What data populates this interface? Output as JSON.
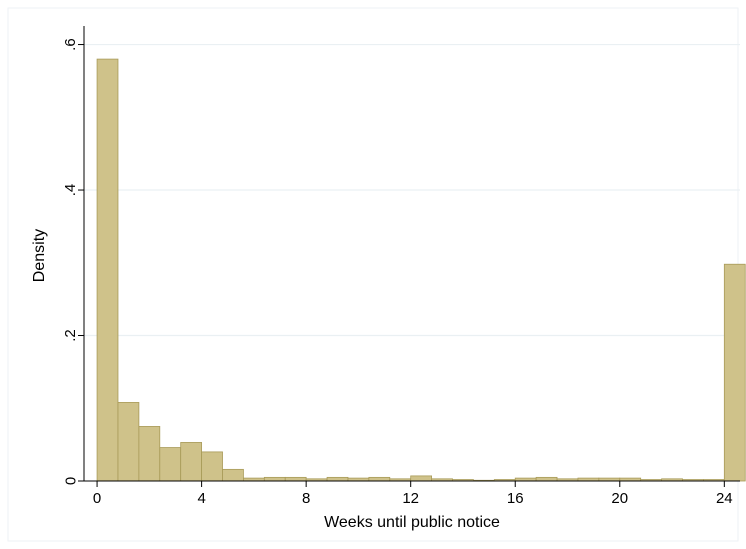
{
  "chart_data": {
    "type": "bar",
    "title": "",
    "xlabel": "Weeks until public notice",
    "ylabel": "Density",
    "xlim": [
      -0.5,
      24.6
    ],
    "ylim": [
      0,
      0.62
    ],
    "x_ticks": [
      0,
      4,
      8,
      12,
      16,
      20,
      24
    ],
    "x_tick_labels": [
      "0",
      "4",
      "8",
      "12",
      "16",
      "20",
      "24"
    ],
    "y_ticks": [
      0,
      0.2,
      0.4,
      0.6
    ],
    "y_tick_labels": [
      "0",
      ".2",
      ".4",
      ".6"
    ],
    "grid": true,
    "legend": "none",
    "bin_width": 0.8,
    "bins": [
      {
        "x0": 0.0,
        "value": 0.58
      },
      {
        "x0": 0.8,
        "value": 0.108
      },
      {
        "x0": 1.6,
        "value": 0.075
      },
      {
        "x0": 2.4,
        "value": 0.046
      },
      {
        "x0": 3.2,
        "value": 0.053
      },
      {
        "x0": 4.0,
        "value": 0.04
      },
      {
        "x0": 4.8,
        "value": 0.016
      },
      {
        "x0": 5.6,
        "value": 0.004
      },
      {
        "x0": 6.4,
        "value": 0.005
      },
      {
        "x0": 7.2,
        "value": 0.005
      },
      {
        "x0": 8.0,
        "value": 0.003
      },
      {
        "x0": 8.8,
        "value": 0.005
      },
      {
        "x0": 9.6,
        "value": 0.004
      },
      {
        "x0": 10.4,
        "value": 0.005
      },
      {
        "x0": 11.2,
        "value": 0.003
      },
      {
        "x0": 12.0,
        "value": 0.007
      },
      {
        "x0": 12.8,
        "value": 0.003
      },
      {
        "x0": 13.6,
        "value": 0.002
      },
      {
        "x0": 14.4,
        "value": 0.001
      },
      {
        "x0": 15.2,
        "value": 0.002
      },
      {
        "x0": 16.0,
        "value": 0.004
      },
      {
        "x0": 16.8,
        "value": 0.005
      },
      {
        "x0": 17.6,
        "value": 0.003
      },
      {
        "x0": 18.4,
        "value": 0.004
      },
      {
        "x0": 19.2,
        "value": 0.004
      },
      {
        "x0": 20.0,
        "value": 0.004
      },
      {
        "x0": 20.8,
        "value": 0.002
      },
      {
        "x0": 21.6,
        "value": 0.003
      },
      {
        "x0": 22.4,
        "value": 0.002
      },
      {
        "x0": 23.2,
        "value": 0.002
      },
      {
        "x0": 24.0,
        "value": 0.298
      }
    ],
    "colors": {
      "bar_fill": "#cfc28a",
      "bar_edge": "#a89a58",
      "grid": "#eaf0f3",
      "axis": "#000000"
    }
  }
}
